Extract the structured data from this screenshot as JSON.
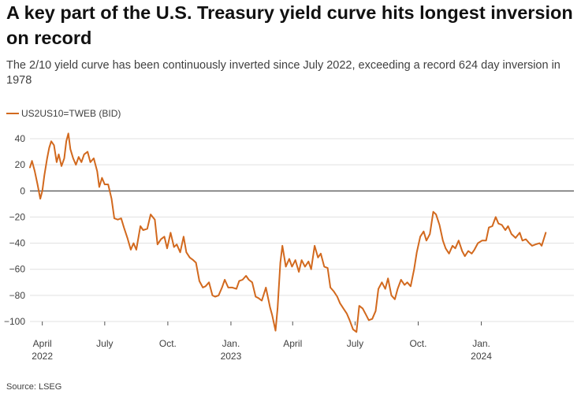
{
  "title": "A key part of the U.S. Treasury yield curve hits longest inversion on record",
  "subtitle": "The 2/10 yield curve has been continuously inverted since July 2022, exceeding a record 624 day inversion in 1978",
  "source": "Source: LSEG",
  "colors": {
    "series": "#d2691e",
    "grid": "#e0e0e0",
    "zero_line": "#222222"
  },
  "chart_data": {
    "type": "line",
    "title": "A key part of the U.S. Treasury yield curve hits longest inversion on record",
    "subtitle": "The 2/10 yield curve has been continuously inverted since July 2022, exceeding a record 624 day inversion in 1978",
    "xlabel": "",
    "ylabel": "",
    "ylim": [
      -110,
      45
    ],
    "yticks": [
      40,
      20,
      0,
      -20,
      -40,
      -60,
      -80,
      -100
    ],
    "ytick_labels": [
      "40",
      "20",
      "0",
      "−20",
      "−40",
      "−60",
      "−80",
      "−100"
    ],
    "xlim": [
      "2022-03-14",
      "2024-05-15"
    ],
    "xticks": [
      {
        "date": "2022-04-01",
        "label": "April",
        "sublabel": "2022"
      },
      {
        "date": "2022-07-01",
        "label": "July",
        "sublabel": ""
      },
      {
        "date": "2022-10-01",
        "label": "Oct.",
        "sublabel": ""
      },
      {
        "date": "2023-01-01",
        "label": "Jan.",
        "sublabel": "2023"
      },
      {
        "date": "2023-04-01",
        "label": "April",
        "sublabel": ""
      },
      {
        "date": "2023-07-01",
        "label": "July",
        "sublabel": ""
      },
      {
        "date": "2023-10-01",
        "label": "Oct.",
        "sublabel": ""
      },
      {
        "date": "2024-01-01",
        "label": "Jan.",
        "sublabel": "2024"
      }
    ],
    "grid": true,
    "legend": "top-left",
    "series": [
      {
        "name": "US2US10=TWEB (BID)",
        "color": "#d2691e",
        "points": [
          [
            "2022-03-14",
            18
          ],
          [
            "2022-03-17",
            23
          ],
          [
            "2022-03-21",
            15
          ],
          [
            "2022-03-25",
            5
          ],
          [
            "2022-03-29",
            -6
          ],
          [
            "2022-04-01",
            0
          ],
          [
            "2022-04-04",
            12
          ],
          [
            "2022-04-08",
            25
          ],
          [
            "2022-04-11",
            33
          ],
          [
            "2022-04-14",
            38
          ],
          [
            "2022-04-18",
            35
          ],
          [
            "2022-04-22",
            22
          ],
          [
            "2022-04-25",
            28
          ],
          [
            "2022-04-29",
            19
          ],
          [
            "2022-05-03",
            25
          ],
          [
            "2022-05-06",
            38
          ],
          [
            "2022-05-09",
            44
          ],
          [
            "2022-05-12",
            32
          ],
          [
            "2022-05-16",
            25
          ],
          [
            "2022-05-20",
            20
          ],
          [
            "2022-05-24",
            26
          ],
          [
            "2022-05-28",
            22
          ],
          [
            "2022-06-01",
            28
          ],
          [
            "2022-06-06",
            30
          ],
          [
            "2022-06-10",
            22
          ],
          [
            "2022-06-15",
            25
          ],
          [
            "2022-06-20",
            15
          ],
          [
            "2022-06-23",
            3
          ],
          [
            "2022-06-27",
            10
          ],
          [
            "2022-07-01",
            5
          ],
          [
            "2022-07-06",
            5
          ],
          [
            "2022-07-11",
            -6
          ],
          [
            "2022-07-15",
            -21
          ],
          [
            "2022-07-20",
            -22
          ],
          [
            "2022-07-25",
            -21
          ],
          [
            "2022-07-29",
            -28
          ],
          [
            "2022-08-03",
            -36
          ],
          [
            "2022-08-08",
            -45
          ],
          [
            "2022-08-12",
            -40
          ],
          [
            "2022-08-16",
            -45
          ],
          [
            "2022-08-22",
            -27
          ],
          [
            "2022-08-26",
            -30
          ],
          [
            "2022-09-01",
            -29
          ],
          [
            "2022-09-06",
            -18
          ],
          [
            "2022-09-12",
            -22
          ],
          [
            "2022-09-16",
            -41
          ],
          [
            "2022-09-21",
            -37
          ],
          [
            "2022-09-26",
            -35
          ],
          [
            "2022-09-30",
            -44
          ],
          [
            "2022-10-05",
            -32
          ],
          [
            "2022-10-10",
            -43
          ],
          [
            "2022-10-14",
            -41
          ],
          [
            "2022-10-19",
            -47
          ],
          [
            "2022-10-24",
            -35
          ],
          [
            "2022-10-28",
            -47
          ],
          [
            "2022-11-02",
            -51
          ],
          [
            "2022-11-07",
            -53
          ],
          [
            "2022-11-11",
            -55
          ],
          [
            "2022-11-16",
            -69
          ],
          [
            "2022-11-21",
            -74
          ],
          [
            "2022-11-25",
            -73
          ],
          [
            "2022-11-30",
            -70
          ],
          [
            "2022-12-05",
            -80
          ],
          [
            "2022-12-09",
            -81
          ],
          [
            "2022-12-14",
            -80
          ],
          [
            "2022-12-19",
            -74
          ],
          [
            "2022-12-23",
            -68
          ],
          [
            "2022-12-28",
            -74
          ],
          [
            "2023-01-03",
            -74
          ],
          [
            "2023-01-09",
            -75
          ],
          [
            "2023-01-13",
            -69
          ],
          [
            "2023-01-18",
            -68
          ],
          [
            "2023-01-23",
            -65
          ],
          [
            "2023-01-27",
            -68
          ],
          [
            "2023-02-01",
            -70
          ],
          [
            "2023-02-06",
            -81
          ],
          [
            "2023-02-10",
            -82
          ],
          [
            "2023-02-15",
            -84
          ],
          [
            "2023-02-21",
            -74
          ],
          [
            "2023-02-27",
            -89
          ],
          [
            "2023-03-02",
            -95
          ],
          [
            "2023-03-07",
            -107
          ],
          [
            "2023-03-10",
            -90
          ],
          [
            "2023-03-14",
            -55
          ],
          [
            "2023-03-17",
            -42
          ],
          [
            "2023-03-22",
            -58
          ],
          [
            "2023-03-27",
            -52
          ],
          [
            "2023-03-31",
            -58
          ],
          [
            "2023-04-05",
            -53
          ],
          [
            "2023-04-10",
            -62
          ],
          [
            "2023-04-14",
            -53
          ],
          [
            "2023-04-19",
            -58
          ],
          [
            "2023-04-24",
            -54
          ],
          [
            "2023-04-28",
            -60
          ],
          [
            "2023-05-03",
            -42
          ],
          [
            "2023-05-08",
            -51
          ],
          [
            "2023-05-12",
            -48
          ],
          [
            "2023-05-17",
            -58
          ],
          [
            "2023-05-22",
            -59
          ],
          [
            "2023-05-26",
            -74
          ],
          [
            "2023-05-31",
            -77
          ],
          [
            "2023-06-05",
            -81
          ],
          [
            "2023-06-09",
            -86
          ],
          [
            "2023-06-14",
            -90
          ],
          [
            "2023-06-19",
            -94
          ],
          [
            "2023-06-23",
            -99
          ],
          [
            "2023-06-28",
            -106
          ],
          [
            "2023-07-03",
            -108
          ],
          [
            "2023-07-07",
            -88
          ],
          [
            "2023-07-12",
            -90
          ],
          [
            "2023-07-17",
            -95
          ],
          [
            "2023-07-21",
            -99
          ],
          [
            "2023-07-26",
            -98
          ],
          [
            "2023-07-31",
            -92
          ],
          [
            "2023-08-04",
            -75
          ],
          [
            "2023-08-09",
            -70
          ],
          [
            "2023-08-14",
            -75
          ],
          [
            "2023-08-18",
            -67
          ],
          [
            "2023-08-23",
            -80
          ],
          [
            "2023-08-28",
            -83
          ],
          [
            "2023-09-01",
            -75
          ],
          [
            "2023-09-06",
            -68
          ],
          [
            "2023-09-11",
            -72
          ],
          [
            "2023-09-15",
            -70
          ],
          [
            "2023-09-20",
            -73
          ],
          [
            "2023-09-25",
            -60
          ],
          [
            "2023-09-29",
            -47
          ],
          [
            "2023-10-04",
            -35
          ],
          [
            "2023-10-09",
            -31
          ],
          [
            "2023-10-13",
            -38
          ],
          [
            "2023-10-18",
            -33
          ],
          [
            "2023-10-23",
            -16
          ],
          [
            "2023-10-27",
            -18
          ],
          [
            "2023-11-01",
            -26
          ],
          [
            "2023-11-06",
            -38
          ],
          [
            "2023-11-10",
            -44
          ],
          [
            "2023-11-15",
            -48
          ],
          [
            "2023-11-20",
            -42
          ],
          [
            "2023-11-24",
            -44
          ],
          [
            "2023-11-29",
            -38
          ],
          [
            "2023-12-04",
            -46
          ],
          [
            "2023-12-08",
            -50
          ],
          [
            "2023-12-13",
            -46
          ],
          [
            "2023-12-18",
            -48
          ],
          [
            "2023-12-22",
            -45
          ],
          [
            "2023-12-27",
            -40
          ],
          [
            "2024-01-02",
            -38
          ],
          [
            "2024-01-08",
            -38
          ],
          [
            "2024-01-12",
            -28
          ],
          [
            "2024-01-17",
            -27
          ],
          [
            "2024-01-22",
            -20
          ],
          [
            "2024-01-26",
            -25
          ],
          [
            "2024-01-31",
            -26
          ],
          [
            "2024-02-05",
            -30
          ],
          [
            "2024-02-09",
            -27
          ],
          [
            "2024-02-14",
            -33
          ],
          [
            "2024-02-20",
            -36
          ],
          [
            "2024-02-26",
            -32
          ],
          [
            "2024-03-01",
            -38
          ],
          [
            "2024-03-06",
            -37
          ],
          [
            "2024-03-11",
            -40
          ],
          [
            "2024-03-15",
            -42
          ],
          [
            "2024-03-20",
            -41
          ],
          [
            "2024-03-26",
            -40
          ],
          [
            "2024-03-29",
            -42
          ],
          [
            "2024-04-04",
            -32
          ]
        ]
      }
    ]
  }
}
